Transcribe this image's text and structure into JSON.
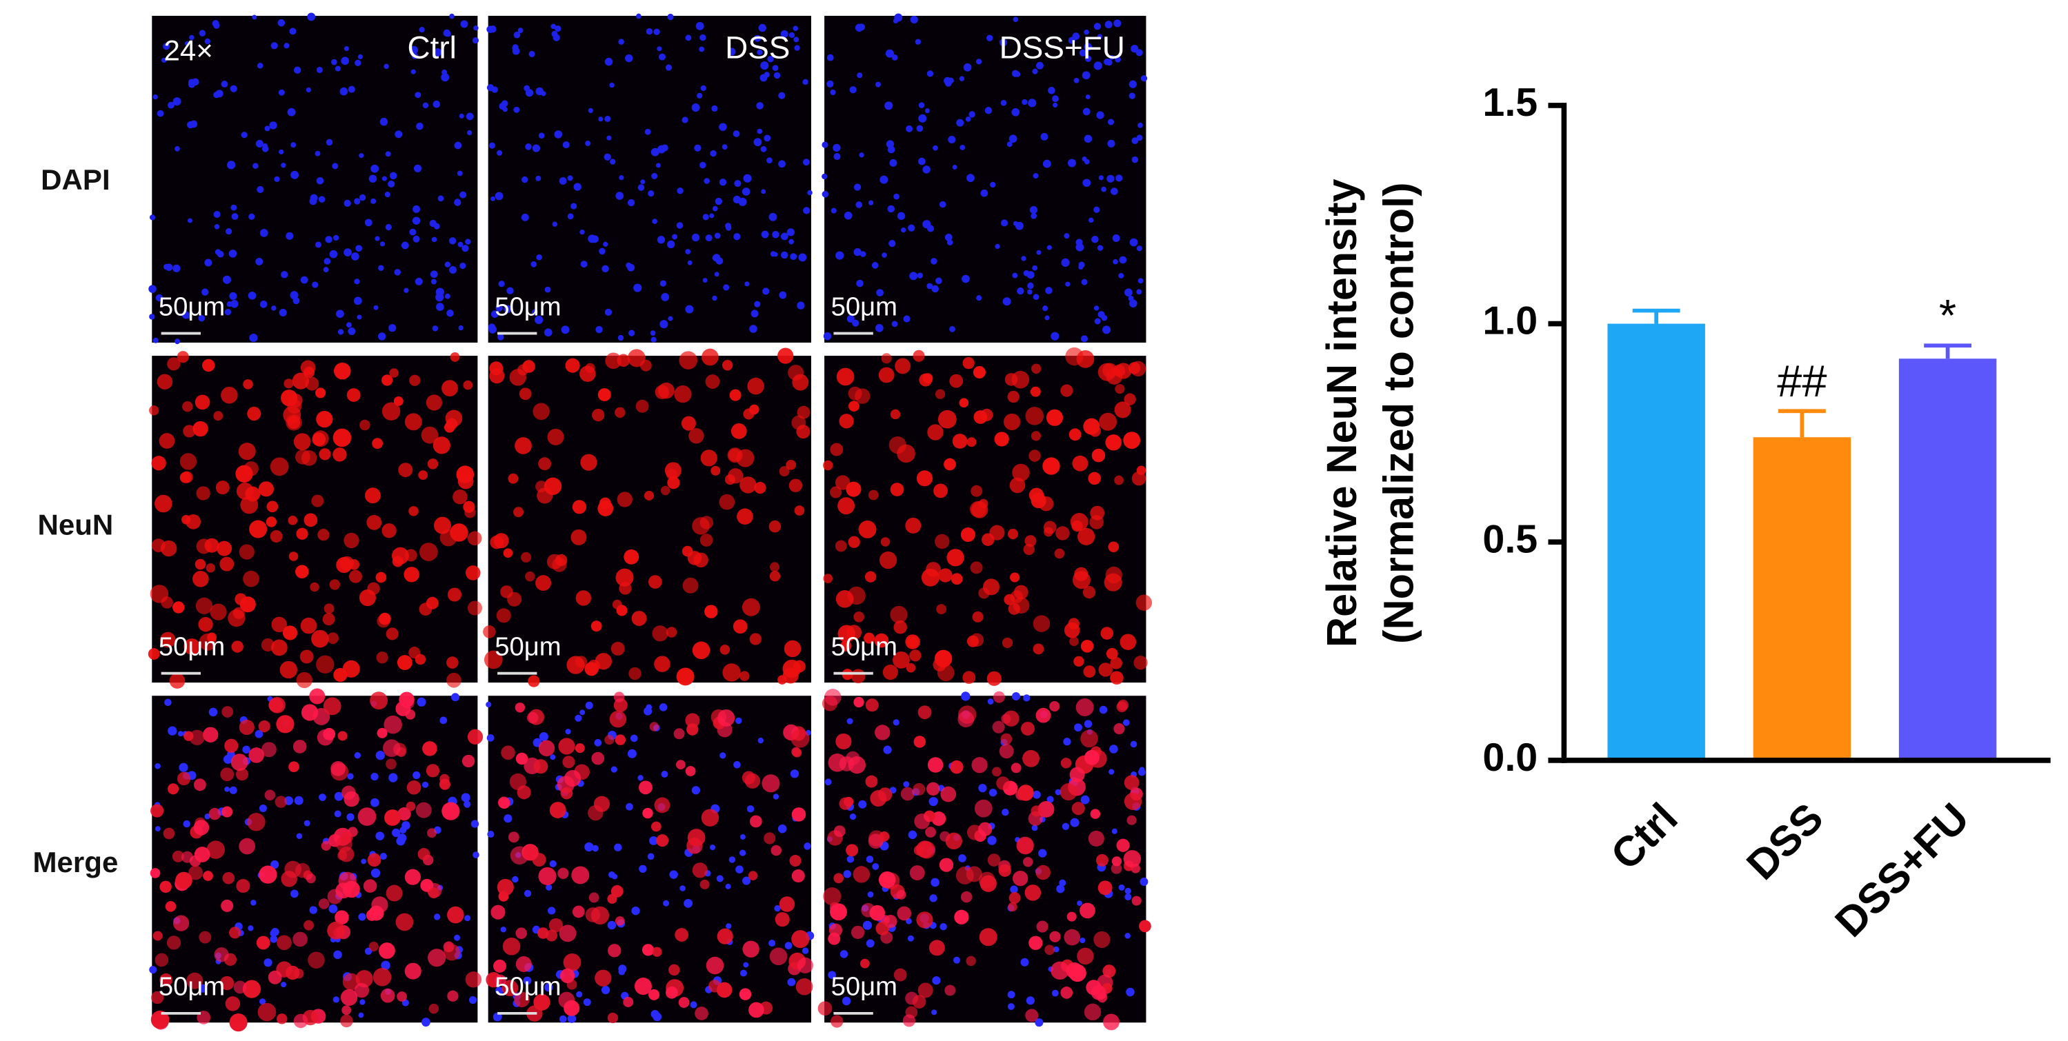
{
  "figure": {
    "magnification": "24×",
    "columns": [
      "Ctrl",
      "DSS",
      "DSS+FU"
    ],
    "rows": [
      "DAPI",
      "NeuN",
      "Merge"
    ],
    "scale_bar": "50μm"
  },
  "chart_data": {
    "type": "bar",
    "ylabel": [
      "Relative NeuN intensity",
      "(Normalized to control)"
    ],
    "categories": [
      "Ctrl",
      "DSS",
      "DSS+FU"
    ],
    "values": [
      1.0,
      0.74,
      0.92
    ],
    "errors": [
      0.03,
      0.06,
      0.03
    ],
    "colors": [
      "#1ea7f5",
      "#ff8a0d",
      "#5b57fb"
    ],
    "annotations": [
      null,
      "##",
      "*"
    ],
    "ylim": [
      0,
      1.5
    ],
    "yticks": [
      {
        "value": 0,
        "label": "0.0"
      },
      {
        "value": 0.5,
        "label": "0.5"
      },
      {
        "value": 1,
        "label": "1.0"
      },
      {
        "value": 1.5,
        "label": "1.5"
      }
    ]
  }
}
